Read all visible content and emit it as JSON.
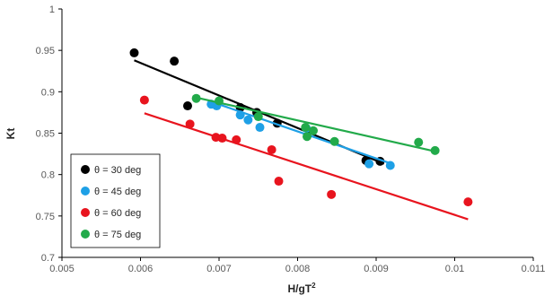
{
  "chart_data": {
    "type": "scatter",
    "title": "",
    "xlabel": "H/gT",
    "xlabel_superscript": "2",
    "ylabel": "Kt",
    "xlim": [
      0.005,
      0.011
    ],
    "ylim": [
      0.7,
      1.0
    ],
    "x_ticks": [
      0.005,
      0.006,
      0.007,
      0.008,
      0.009,
      0.01,
      0.011
    ],
    "x_tick_labels": [
      "0.005",
      "0.006",
      "0.007",
      "0.008",
      "0.009",
      "0.01",
      "0.011"
    ],
    "y_ticks": [
      0.7,
      0.75,
      0.8,
      0.85,
      0.9,
      0.95,
      1.0
    ],
    "y_tick_labels": [
      "0.7",
      "0.75",
      "0.8",
      "0.85",
      "0.9",
      "0.95",
      "1"
    ],
    "grid": false,
    "legend_position": "bottom-left",
    "series": [
      {
        "name": "θ = 30 deg",
        "color": "#000000",
        "points": [
          [
            0.00592,
            0.947
          ],
          [
            0.00643,
            0.937
          ],
          [
            0.0066,
            0.883
          ],
          [
            0.00727,
            0.881
          ],
          [
            0.00748,
            0.875
          ],
          [
            0.00774,
            0.862
          ],
          [
            0.00887,
            0.817
          ],
          [
            0.00905,
            0.816
          ]
        ],
        "trendline": [
          [
            0.00592,
            0.938
          ],
          [
            0.0091,
            0.813
          ]
        ]
      },
      {
        "name": "θ = 45 deg",
        "color": "#1ea0e6",
        "points": [
          [
            0.0069,
            0.885
          ],
          [
            0.00697,
            0.883
          ],
          [
            0.00727,
            0.872
          ],
          [
            0.00737,
            0.866
          ],
          [
            0.00752,
            0.857
          ],
          [
            0.00811,
            0.856
          ],
          [
            0.00891,
            0.813
          ],
          [
            0.00918,
            0.811
          ]
        ],
        "trendline": [
          [
            0.0069,
            0.888
          ],
          [
            0.0092,
            0.813
          ]
        ]
      },
      {
        "name": "θ = 60 deg",
        "color": "#e8141e",
        "points": [
          [
            0.00605,
            0.89
          ],
          [
            0.00663,
            0.861
          ],
          [
            0.00696,
            0.845
          ],
          [
            0.00704,
            0.844
          ],
          [
            0.00722,
            0.842
          ],
          [
            0.00767,
            0.83
          ],
          [
            0.00776,
            0.792
          ],
          [
            0.00843,
            0.776
          ],
          [
            0.01017,
            0.767
          ]
        ],
        "trendline": [
          [
            0.00605,
            0.874
          ],
          [
            0.01017,
            0.746
          ]
        ]
      },
      {
        "name": "θ = 75 deg",
        "color": "#22aa4a",
        "points": [
          [
            0.00671,
            0.892
          ],
          [
            0.007,
            0.889
          ],
          [
            0.0075,
            0.87
          ],
          [
            0.0081,
            0.857
          ],
          [
            0.00812,
            0.846
          ],
          [
            0.0082,
            0.853
          ],
          [
            0.00847,
            0.84
          ],
          [
            0.00954,
            0.839
          ],
          [
            0.00975,
            0.829
          ]
        ],
        "trendline": [
          [
            0.00671,
            0.893
          ],
          [
            0.00975,
            0.828
          ]
        ]
      }
    ]
  }
}
